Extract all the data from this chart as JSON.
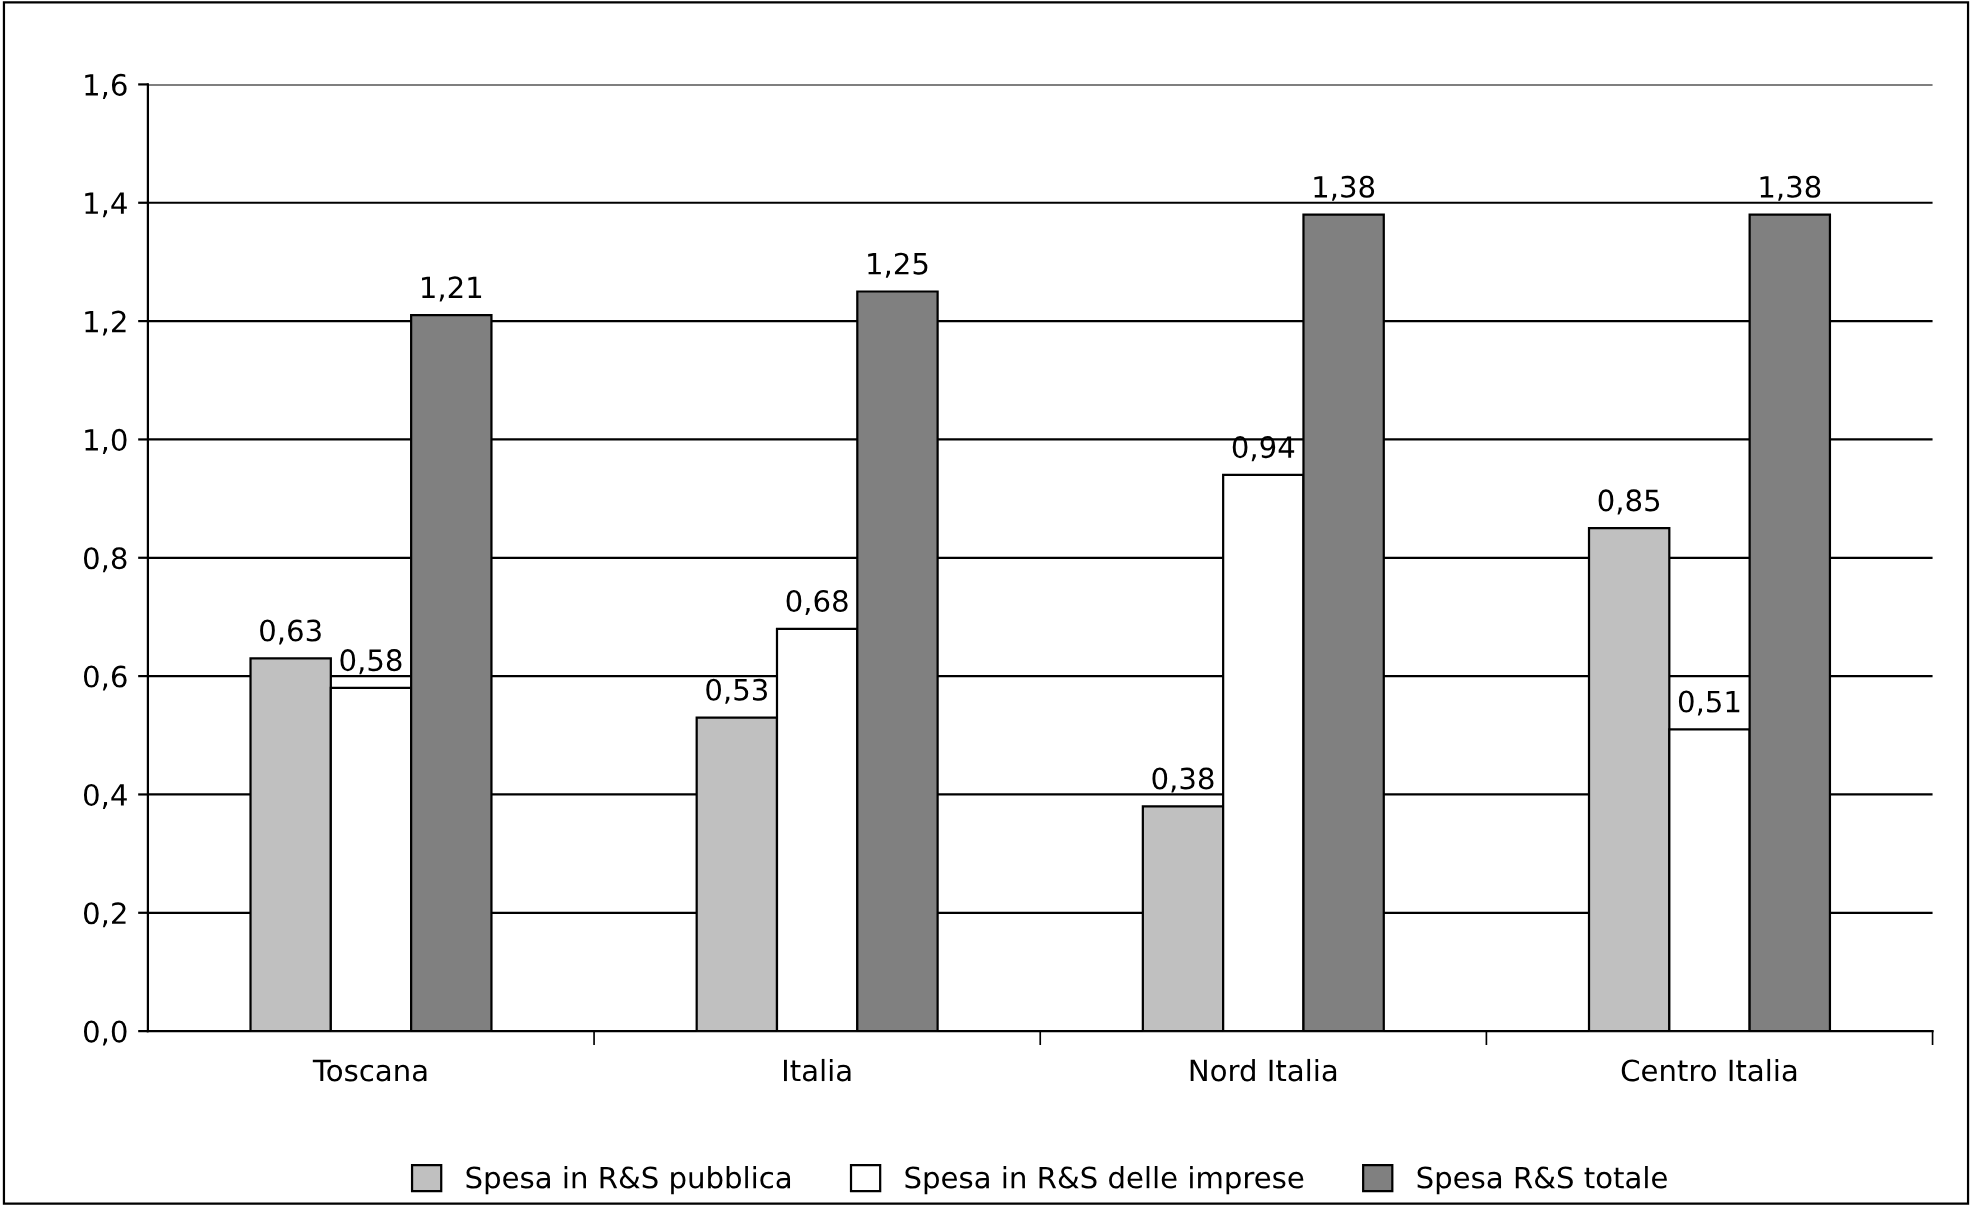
{
  "chart_data": {
    "type": "bar",
    "categories": [
      "Toscana",
      "Italia",
      "Nord Italia",
      "Centro Italia"
    ],
    "series": [
      {
        "name": "Spesa in R&S pubblica",
        "color": "#c0c0c0",
        "values": [
          0.63,
          0.53,
          0.38,
          0.85
        ],
        "value_labels": [
          "0,63",
          "0,53",
          "0,38",
          "0,85"
        ]
      },
      {
        "name": "Spesa in R&S delle imprese",
        "color": "#ffffff",
        "values": [
          0.58,
          0.68,
          0.94,
          0.51
        ],
        "value_labels": [
          "0,58",
          "0,68",
          "0,94",
          "0,51"
        ]
      },
      {
        "name": "Spesa R&S totale",
        "color": "#808080",
        "values": [
          1.21,
          1.25,
          1.38,
          1.38
        ],
        "value_labels": [
          "1,21",
          "1,25",
          "1,38",
          "1,38"
        ]
      }
    ],
    "ylim": [
      0,
      1.6
    ],
    "yticks": [
      {
        "value": 0,
        "label": "0,0"
      },
      {
        "value": 0.2,
        "label": "0,2"
      },
      {
        "value": 0.4,
        "label": "0,4"
      },
      {
        "value": 0.6,
        "label": "0,6"
      },
      {
        "value": 0.8,
        "label": "0,8"
      },
      {
        "value": 1.0,
        "label": "1,0"
      },
      {
        "value": 1.2,
        "label": "1,2"
      },
      {
        "value": 1.4,
        "label": "1,4"
      },
      {
        "value": 1.6,
        "label": "1,6"
      }
    ],
    "grid": "y",
    "legend": "bottom"
  }
}
